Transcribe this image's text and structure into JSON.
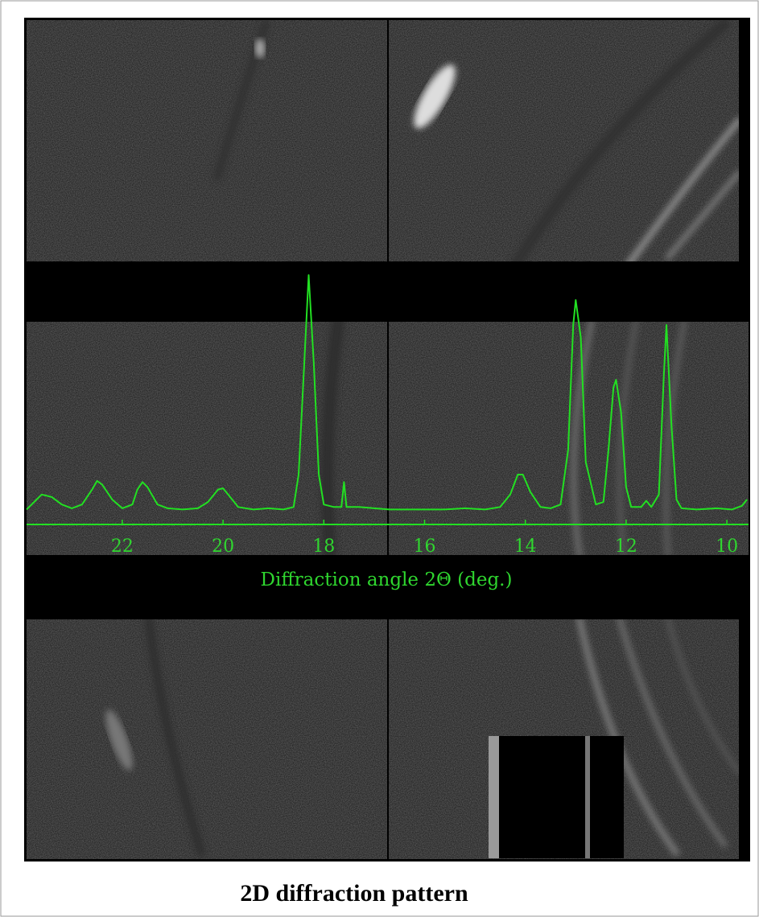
{
  "chart_data": {
    "type": "line",
    "caption": "2D diffraction pattern",
    "x_label": "Diffraction angle 2Θ (deg.)",
    "color": "#22e022",
    "xlim": [
      23.9,
      9.57
    ],
    "ylim": [
      0,
      100
    ],
    "xticks": [
      22,
      20,
      18,
      16,
      14,
      12,
      10
    ],
    "x": [
      23.9,
      23.7,
      23.6,
      23.4,
      23.2,
      23.0,
      22.8,
      22.6,
      22.5,
      22.4,
      22.2,
      22.0,
      21.8,
      21.7,
      21.6,
      21.5,
      21.3,
      21.1,
      20.8,
      20.5,
      20.3,
      20.1,
      20.0,
      19.9,
      19.7,
      19.4,
      19.1,
      18.8,
      18.6,
      18.5,
      18.4,
      18.3,
      18.2,
      18.1,
      18.0,
      17.8,
      17.65,
      17.6,
      17.55,
      17.3,
      17.0,
      16.7,
      16.4,
      16.0,
      15.6,
      15.2,
      14.8,
      14.5,
      14.3,
      14.15,
      14.05,
      13.9,
      13.7,
      13.5,
      13.3,
      13.15,
      13.05,
      13.0,
      12.9,
      12.8,
      12.6,
      12.45,
      12.35,
      12.25,
      12.2,
      12.1,
      12.0,
      11.9,
      11.7,
      11.6,
      11.5,
      11.35,
      11.25,
      11.2,
      11.1,
      11.0,
      10.9,
      10.6,
      10.2,
      9.9,
      9.7,
      9.6
    ],
    "values": [
      6,
      10,
      12,
      11,
      8,
      6.5,
      8,
      14,
      17.5,
      16,
      10,
      6.5,
      8,
      14,
      17,
      15,
      8,
      6.5,
      6,
      6.5,
      9,
      14,
      14.5,
      12,
      7,
      6,
      6.5,
      6,
      7,
      20,
      60,
      100,
      65,
      20,
      8,
      7,
      7,
      17,
      7,
      7,
      6.5,
      6,
      6,
      6,
      6,
      6.5,
      6,
      7,
      12,
      20,
      20,
      13,
      7,
      6.5,
      8,
      30,
      80,
      90,
      75,
      25,
      8,
      9,
      30,
      55,
      58,
      45,
      15,
      7,
      7,
      9.5,
      7,
      12,
      60,
      80,
      40,
      10,
      6.5,
      6,
      6.5,
      6,
      7.5,
      10
    ]
  }
}
